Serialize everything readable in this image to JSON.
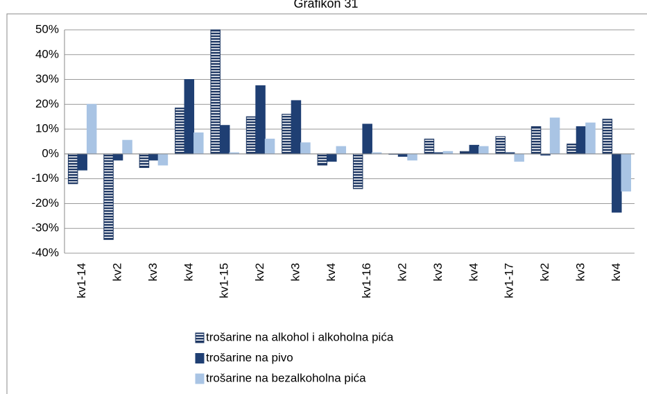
{
  "chart_data": {
    "type": "bar",
    "title": "Grafikon 31",
    "categories": [
      "kv1-14",
      "kv2",
      "kv3",
      "kv4",
      "kv1-15",
      "kv2",
      "kv3",
      "kv4",
      "kv1-16",
      "kv2",
      "kv3",
      "kv4",
      "kv1-17",
      "kv2",
      "kv3",
      "kv4"
    ],
    "series": [
      {
        "name": "trošarine na alkohol i alkoholna pića",
        "color": "#1f3864",
        "pattern": "horizontal-stripes",
        "values": [
          -12,
          -34.5,
          -5.5,
          18.5,
          50,
          15,
          16,
          -4.5,
          -14,
          0,
          6,
          1,
          7,
          11,
          4,
          14
        ]
      },
      {
        "name": "trošarine na pivo",
        "color": "#1f3f73",
        "values": [
          -6.5,
          -2.5,
          -2.5,
          30,
          11.5,
          27.5,
          21.5,
          -3,
          12,
          -1,
          0.5,
          3.5,
          0.5,
          -0.5,
          11,
          -23.5
        ]
      },
      {
        "name": "trošarine na bezalkoholna pića",
        "color": "#a9c4e4",
        "values": [
          20,
          5.5,
          -4.5,
          8.5,
          0.5,
          6,
          4.5,
          3,
          0.5,
          -2.5,
          1,
          3,
          -3,
          14.5,
          12.5,
          -15
        ]
      }
    ],
    "ylim": [
      -40,
      50
    ],
    "yticks": [
      {
        "value": -40,
        "label": "-40%"
      },
      {
        "value": -30,
        "label": "-30%"
      },
      {
        "value": -20,
        "label": "-20%"
      },
      {
        "value": -10,
        "label": "-10%"
      },
      {
        "value": 0,
        "label": "0%"
      },
      {
        "value": 10,
        "label": "10%"
      },
      {
        "value": 20,
        "label": "20%"
      },
      {
        "value": 30,
        "label": "30%"
      },
      {
        "value": 40,
        "label": "40%"
      },
      {
        "value": 50,
        "label": "50%"
      }
    ],
    "grid": true,
    "legend": "bottom"
  }
}
